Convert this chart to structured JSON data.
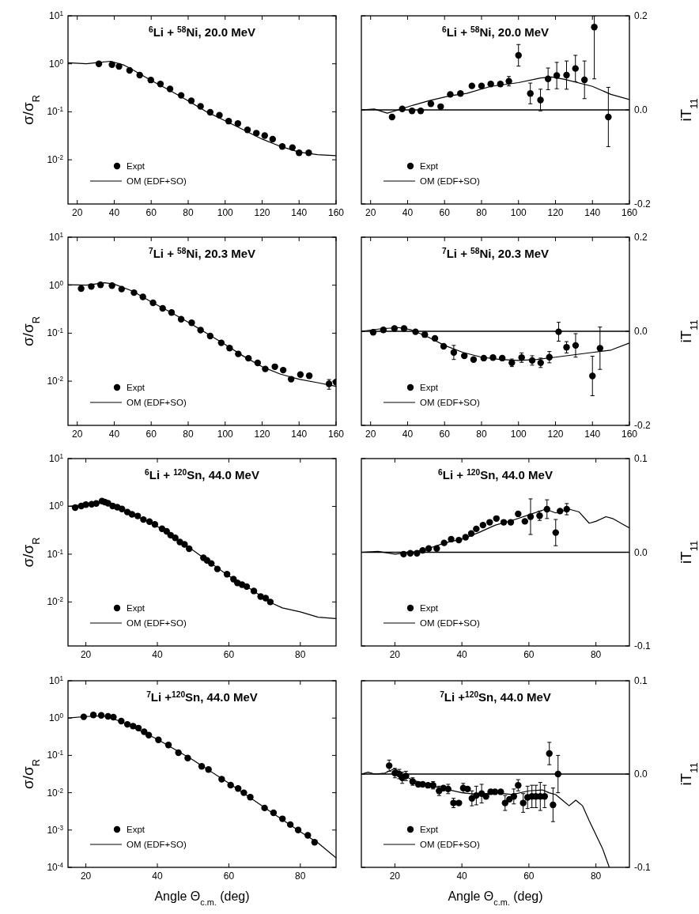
{
  "chart_data": [
    {
      "type": "scatter",
      "title": "$^{6}$Li + $^{58}$Ni, 20.0 MeV",
      "ylabel": "σ/σ$_{R}$",
      "log": "y",
      "legend": "bottom left",
      "xlim": [
        15,
        160
      ],
      "xticks": [
        20,
        40,
        60,
        80,
        100,
        120,
        140,
        160
      ],
      "ylim": [
        0.0012,
        10
      ],
      "yticks": [
        {
          "value": 10,
          "label": "10$^{1}$"
        },
        {
          "value": 1,
          "label": "10$^{0}$"
        },
        {
          "value": 0.1,
          "label": "10$^{-1}$"
        },
        {
          "value": 0.01,
          "label": "10$^{-2}$"
        }
      ],
      "series": [
        {
          "name": "Expt",
          "type": "scatter",
          "marker": "circle",
          "color": "#000000",
          "x": [
            31.7,
            38.8,
            42.6,
            48.3,
            53.8,
            59.8,
            65,
            70.2,
            76.2,
            81.7,
            86.7,
            91.9,
            96.9,
            101.9,
            106.9,
            112.1,
            116.9,
            121.4,
            125.7,
            130.9,
            136.4,
            140,
            145.2
          ],
          "values": [
            1.0,
            0.96,
            0.88,
            0.73,
            0.58,
            0.46,
            0.38,
            0.3,
            0.22,
            0.17,
            0.13,
            0.098,
            0.085,
            0.064,
            0.057,
            0.042,
            0.036,
            0.032,
            0.027,
            0.019,
            0.018,
            0.014,
            0.014
          ]
        },
        {
          "name": "OM (EDF+SO)",
          "type": "line",
          "color": "#000000",
          "x": [
            15,
            25,
            30,
            38,
            45,
            50,
            60,
            70,
            80,
            90,
            100,
            110,
            120,
            130,
            140,
            150,
            160
          ],
          "values": [
            1.05,
            1.0,
            1.05,
            1.13,
            0.95,
            0.75,
            0.45,
            0.28,
            0.17,
            0.1,
            0.065,
            0.042,
            0.027,
            0.019,
            0.0145,
            0.0128,
            0.0122
          ]
        }
      ]
    },
    {
      "type": "scatter",
      "title": "$^{6}$Li + $^{58}$Ni, 20.0 MeV",
      "ylabel": "iT$_{11}$",
      "legend": "bottom left",
      "xlim": [
        15,
        160
      ],
      "xticks": [
        20,
        40,
        60,
        80,
        100,
        120,
        140,
        160
      ],
      "ylim": [
        -0.2,
        0.2
      ],
      "yticks": [
        {
          "value": -0.2,
          "label": "-0.2"
        },
        {
          "value": 0,
          "label": "0.0"
        },
        {
          "value": 0.2,
          "label": "0.2"
        }
      ],
      "ref_lines": [
        {
          "axis": "y",
          "value": 0,
          "color": "#000000"
        }
      ],
      "series": [
        {
          "name": "Expt",
          "type": "scatter",
          "marker": "circle",
          "color": "#000000",
          "x": [
            31.6,
            37.1,
            42.4,
            47.1,
            52.6,
            57.9,
            63.1,
            68.6,
            74.8,
            80,
            85,
            90.2,
            94.8,
            100,
            106.4,
            111.9,
            116,
            120.7,
            126,
            130.8,
            135.7,
            141,
            148.6
          ],
          "values": [
            -0.015,
            0.002,
            -0.002,
            -0.002,
            0.013,
            0.007,
            0.033,
            0.035,
            0.051,
            0.051,
            0.055,
            0.055,
            0.061,
            0.116,
            0.035,
            0.021,
            0.066,
            0.073,
            0.074,
            0.088,
            0.064,
            0.176,
            -0.015
          ],
          "errors": [
            null,
            null,
            null,
            null,
            null,
            null,
            null,
            null,
            null,
            null,
            null,
            null,
            0.01,
            0.023,
            0.022,
            0.023,
            0.023,
            0.028,
            0.03,
            0.028,
            0.04,
            [
              0.066,
              0.2
            ],
            0.063
          ]
        },
        {
          "name": "OM (EDF+SO)",
          "type": "line",
          "color": "#000000",
          "x": [
            15,
            22,
            29,
            35,
            43,
            52,
            63,
            72,
            85,
            100,
            112,
            118,
            125,
            140,
            150,
            160
          ],
          "values": [
            0,
            0.002,
            -0.007,
            0,
            0.01,
            0.02,
            0.03,
            0.035,
            0.05,
            0.058,
            0.068,
            0.07,
            0.065,
            0.05,
            0.033,
            0.022
          ]
        }
      ]
    },
    {
      "type": "scatter",
      "title": "$^{7}$Li + $^{58}$Ni, 20.3 MeV",
      "ylabel": "σ/σ$_{R}$",
      "log": "y",
      "legend": "bottom left",
      "xlim": [
        15,
        160
      ],
      "xticks": [
        20,
        40,
        60,
        80,
        100,
        120,
        140,
        160
      ],
      "ylim": [
        0.0012,
        10
      ],
      "yticks": [
        {
          "value": 10,
          "label": "10$^{1}$"
        },
        {
          "value": 1,
          "label": "10$^{0}$"
        },
        {
          "value": 0.1,
          "label": "10$^{-1}$"
        },
        {
          "value": 0.01,
          "label": "10$^{-2}$"
        }
      ],
      "series": [
        {
          "name": "Expt",
          "type": "scatter",
          "marker": "circle",
          "color": "#000000",
          "x": [
            22.1,
            27.6,
            32.6,
            38.8,
            44,
            50.7,
            55.5,
            61,
            66.2,
            71,
            76.2,
            81.9,
            86.7,
            91.9,
            97.9,
            102.4,
            107.1,
            112.6,
            117.6,
            121.7,
            126.9,
            131.4,
            135.7,
            140.7,
            145.5,
            156.2,
            160
          ],
          "values": [
            0.85,
            0.94,
            1.02,
            0.98,
            0.83,
            0.7,
            0.57,
            0.43,
            0.33,
            0.27,
            0.195,
            0.165,
            0.116,
            0.087,
            0.063,
            0.049,
            0.037,
            0.03,
            0.024,
            0.018,
            0.02,
            0.017,
            0.011,
            0.0137,
            0.013,
            0.0088,
            0.0096
          ],
          "errors": [
            null,
            null,
            null,
            null,
            null,
            null,
            null,
            null,
            null,
            null,
            null,
            null,
            null,
            null,
            null,
            null,
            null,
            null,
            null,
            null,
            null,
            null,
            null,
            null,
            null,
            0.002,
            null
          ]
        },
        {
          "name": "OM (EDF+SO)",
          "type": "line",
          "color": "#000000",
          "x": [
            15,
            25,
            35,
            40,
            50,
            60,
            70,
            80,
            90,
            100,
            110,
            120,
            130,
            140,
            150,
            160
          ],
          "values": [
            1.02,
            1.0,
            1.12,
            1.05,
            0.75,
            0.45,
            0.28,
            0.17,
            0.1,
            0.058,
            0.033,
            0.02,
            0.014,
            0.011,
            0.0093,
            0.0078
          ]
        }
      ]
    },
    {
      "type": "scatter",
      "title": "$^{7}$Li + $^{58}$Ni, 20.3 MeV",
      "ylabel": "iT$_{11}$",
      "legend": "bottom left",
      "xlim": [
        15,
        160
      ],
      "xticks": [
        20,
        40,
        60,
        80,
        100,
        120,
        140,
        160
      ],
      "ylim": [
        -0.2,
        0.2
      ],
      "yticks": [
        {
          "value": -0.2,
          "label": "-0.2"
        },
        {
          "value": 0,
          "label": "0.0"
        },
        {
          "value": 0.2,
          "label": "0.2"
        }
      ],
      "ref_lines": [
        {
          "axis": "y",
          "value": 0,
          "color": "#000000"
        }
      ],
      "series": [
        {
          "name": "Expt",
          "type": "scatter",
          "marker": "circle",
          "color": "#000000",
          "x": [
            21.4,
            26.9,
            32.9,
            38.1,
            44.3,
            49.3,
            54.8,
            59.5,
            65,
            70.7,
            75.7,
            81.2,
            86.2,
            91.2,
            96.4,
            101.7,
            107.4,
            112,
            116.7,
            121.7,
            126,
            130.9,
            140,
            144.1
          ],
          "values": [
            -0.002,
            0.003,
            0.006,
            0.006,
            -0.001,
            -0.007,
            -0.015,
            -0.032,
            -0.045,
            -0.052,
            -0.06,
            -0.057,
            -0.056,
            -0.057,
            -0.067,
            -0.056,
            -0.062,
            -0.067,
            -0.055,
            -0.001,
            -0.034,
            -0.03,
            -0.095,
            -0.036
          ],
          "errors": [
            null,
            null,
            null,
            null,
            null,
            null,
            null,
            null,
            0.015,
            null,
            null,
            null,
            null,
            null,
            0.008,
            0.01,
            0.01,
            0.01,
            0.012,
            0.02,
            0.012,
            0.025,
            0.042,
            0.045
          ]
        },
        {
          "name": "OM (EDF+SO)",
          "type": "line",
          "color": "#000000",
          "x": [
            15,
            25,
            35,
            42,
            50,
            60,
            70,
            80,
            90,
            100,
            110,
            120,
            130,
            140,
            150,
            160
          ],
          "values": [
            0,
            0.005,
            0.008,
            0.003,
            -0.01,
            -0.03,
            -0.045,
            -0.055,
            -0.06,
            -0.062,
            -0.06,
            -0.055,
            -0.05,
            -0.045,
            -0.04,
            -0.025
          ]
        }
      ]
    },
    {
      "type": "scatter",
      "title": "$^{6}$Li + $^{120}$Sn, 44.0 MeV",
      "ylabel": "σ/σ$_{R}$",
      "log": "y",
      "legend": "bottom left",
      "xlim": [
        15,
        90
      ],
      "xticks": [
        20,
        40,
        60,
        80
      ],
      "ylim": [
        0.0012,
        10
      ],
      "yticks": [
        {
          "value": 10,
          "label": "10$^{1}$"
        },
        {
          "value": 1,
          "label": "10$^{0}$"
        },
        {
          "value": 0.1,
          "label": "10$^{-1}$"
        },
        {
          "value": 0.01,
          "label": "10$^{-2}$"
        }
      ],
      "series": [
        {
          "name": "Expt",
          "type": "scatter",
          "marker": "circle",
          "color": "#000000",
          "x": [
            17.0,
            18.7,
            20.0,
            21.6,
            22.9,
            24.5,
            25.3,
            26.2,
            27.5,
            28.8,
            30.1,
            31.6,
            32.9,
            34.5,
            36.1,
            37.8,
            39.3,
            41.3,
            42.6,
            43.7,
            45.0,
            46.3,
            47.6,
            48.9,
            52.9,
            53.9,
            55.1,
            56.8,
            59.5,
            61.3,
            62.4,
            63.7,
            65.0,
            67.0,
            68.9,
            70.3,
            71.6
          ],
          "values": [
            0.94,
            1.02,
            1.09,
            1.11,
            1.15,
            1.29,
            1.23,
            1.16,
            1.02,
            0.96,
            0.88,
            0.76,
            0.68,
            0.63,
            0.53,
            0.48,
            0.42,
            0.34,
            0.3,
            0.25,
            0.22,
            0.18,
            0.16,
            0.13,
            0.084,
            0.074,
            0.064,
            0.049,
            0.038,
            0.03,
            0.025,
            0.023,
            0.021,
            0.017,
            0.013,
            0.012,
            0.01
          ]
        },
        {
          "name": "OM (EDF+SO)",
          "type": "line",
          "color": "#000000",
          "x": [
            15,
            20,
            25,
            30,
            40,
            50,
            60,
            65,
            72,
            75,
            80,
            85,
            90
          ],
          "values": [
            1.0,
            1.08,
            1.2,
            0.9,
            0.38,
            0.12,
            0.035,
            0.021,
            0.0095,
            0.0075,
            0.0062,
            0.0048,
            0.0045
          ]
        }
      ]
    },
    {
      "type": "scatter",
      "title": "$^{6}$Li + $^{120}$Sn, 44.0 MeV",
      "ylabel": "iT$_{11}$",
      "legend": "bottom left",
      "xlim": [
        10,
        90
      ],
      "xticks": [
        20,
        40,
        60,
        80
      ],
      "ylim": [
        -0.1,
        0.1
      ],
      "yticks": [
        {
          "value": -0.1,
          "label": "-0.1"
        },
        {
          "value": 0,
          "label": "0.0"
        },
        {
          "value": 0.1,
          "label": "0.1"
        }
      ],
      "ref_lines": [
        {
          "axis": "y",
          "value": 0,
          "color": "#000000"
        }
      ],
      "series": [
        {
          "name": "Expt",
          "type": "scatter",
          "marker": "circle",
          "color": "#000000",
          "x": [
            22.6,
            24.6,
            26.6,
            28.3,
            30.1,
            32.5,
            34.7,
            36.8,
            39.1,
            41.1,
            42.8,
            44.3,
            46.3,
            48.3,
            50.3,
            52.5,
            54.6,
            56.8,
            58.8,
            60.5,
            63.2,
            65.4,
            68,
            69.3,
            71.3
          ],
          "values": [
            -0.002,
            -0.001,
            -0.001,
            0.002,
            0.004,
            0.004,
            0.01,
            0.014,
            0.013,
            0.016,
            0.02,
            0.025,
            0.029,
            0.032,
            0.036,
            0.032,
            0.032,
            0.041,
            0.033,
            0.038,
            0.039,
            0.046,
            0.021,
            0.044,
            0.046
          ],
          "errors": [
            null,
            null,
            null,
            null,
            null,
            null,
            null,
            null,
            null,
            null,
            null,
            null,
            null,
            null,
            null,
            null,
            null,
            null,
            null,
            0.019,
            0.005,
            0.01,
            0.014,
            null,
            0.006
          ]
        },
        {
          "name": "OM (EDF+SO)",
          "type": "line",
          "color": "#000000",
          "x": [
            10,
            15,
            20,
            25,
            30,
            35,
            40,
            45,
            50,
            55,
            60,
            65,
            68,
            72,
            75,
            78,
            80,
            83,
            85,
            88,
            90
          ],
          "values": [
            0,
            0.001,
            -0.002,
            0,
            0.004,
            0.01,
            0.014,
            0.021,
            0.029,
            0.034,
            0.04,
            0.046,
            0.042,
            0.046,
            0.043,
            0.031,
            0.033,
            0.038,
            0.036,
            0.03,
            0.026
          ]
        }
      ]
    },
    {
      "type": "scatter",
      "title": "$^{7}$Li +$^{120}$Sn, 44.0 MeV",
      "ylabel": "σ/σ$_{R}$",
      "xlabel": "Angle Θ$_{c.m.}$ (deg)",
      "log": "y",
      "legend": "bottom left",
      "xlim": [
        15,
        90
      ],
      "xticks": [
        20,
        40,
        60,
        80
      ],
      "ylim": [
        0.0001,
        10
      ],
      "yticks": [
        {
          "value": 10,
          "label": "10$^{1}$"
        },
        {
          "value": 1,
          "label": "10$^{0}$"
        },
        {
          "value": 0.1,
          "label": "10$^{-1}$"
        },
        {
          "value": 0.01,
          "label": "10$^{-2}$"
        },
        {
          "value": 0.001,
          "label": "10$^{-3}$"
        },
        {
          "value": 0.0001,
          "label": "10$^{-4}$"
        }
      ],
      "series": [
        {
          "name": "Expt",
          "type": "scatter",
          "marker": "circle",
          "color": "#000000",
          "x": [
            19.4,
            22.1,
            24.3,
            26.2,
            27.7,
            29.9,
            31.6,
            33.2,
            34.7,
            36.3,
            37.6,
            40.3,
            43.1,
            45.9,
            48.5,
            52.4,
            54.3,
            58,
            60.5,
            62.6,
            64.2,
            66,
            70,
            72.5,
            75,
            77.2,
            79.4,
            82.1,
            84
          ],
          "values": [
            1.08,
            1.21,
            1.18,
            1.11,
            1.06,
            0.83,
            0.68,
            0.61,
            0.54,
            0.43,
            0.35,
            0.26,
            0.19,
            0.118,
            0.085,
            0.051,
            0.042,
            0.023,
            0.016,
            0.013,
            0.01,
            0.0076,
            0.0039,
            0.0029,
            0.002,
            0.0014,
            0.001,
            0.00072,
            0.00047
          ]
        },
        {
          "name": "OM (EDF+SO)",
          "type": "line",
          "color": "#000000",
          "x": [
            15,
            20,
            25,
            30,
            40,
            50,
            60,
            70,
            80,
            85,
            90
          ],
          "values": [
            1.0,
            1.1,
            1.15,
            0.8,
            0.27,
            0.075,
            0.018,
            0.004,
            0.0009,
            0.00045,
            0.00018
          ]
        }
      ]
    },
    {
      "type": "scatter",
      "title": "$^{7}$Li +$^{120}$Sn, 44.0 MeV",
      "ylabel": "iT$_{11}$",
      "xlabel": "Angle Θ$_{c.m.}$ (deg)",
      "legend": "bottom left",
      "xlim": [
        10,
        90
      ],
      "xticks": [
        20,
        40,
        60,
        80
      ],
      "ylim": [
        -0.1,
        0.1
      ],
      "yticks": [
        {
          "value": -0.1,
          "label": "-0.1"
        },
        {
          "value": 0,
          "label": "0.0"
        },
        {
          "value": 0.1,
          "label": "0.1"
        }
      ],
      "ref_lines": [
        {
          "axis": "y",
          "value": 0,
          "color": "#000000"
        }
      ],
      "series": [
        {
          "name": "Expt",
          "type": "scatter",
          "marker": "circle",
          "color": "#000000",
          "x": [
            18.3,
            20.0,
            21.3,
            22.2,
            23.3,
            25.3,
            27.0,
            28.3,
            29.9,
            31.4,
            33.2,
            34.5,
            35.9,
            37.5,
            39.1,
            40.4,
            41.7,
            43.0,
            44.3,
            45.9,
            47.2,
            48.6,
            49.9,
            51.6,
            52.9,
            54.2,
            55.5,
            56.8,
            58.3,
            59.6,
            60.9,
            62.1,
            63.4,
            64.7,
            66.1,
            67.2,
            68.7
          ],
          "values": [
            0.009,
            0.001,
            0.0,
            -0.004,
            -0.002,
            -0.008,
            -0.011,
            -0.011,
            -0.012,
            -0.012,
            -0.018,
            -0.015,
            -0.016,
            -0.031,
            -0.031,
            -0.015,
            -0.016,
            -0.026,
            -0.023,
            -0.021,
            -0.024,
            -0.019,
            -0.019,
            -0.019,
            -0.031,
            -0.027,
            -0.024,
            -0.012,
            -0.031,
            -0.025,
            -0.024,
            -0.024,
            -0.024,
            -0.024,
            0.022,
            -0.033,
            0.0
          ],
          "errors": [
            0.006,
            0.005,
            0.005,
            0.006,
            0.005,
            0.004,
            null,
            null,
            null,
            0.004,
            0.005,
            null,
            0.005,
            0.005,
            null,
            0.005,
            null,
            0.008,
            0.01,
            0.01,
            null,
            null,
            null,
            null,
            0.008,
            null,
            0.008,
            0.006,
            0.01,
            0.012,
            0.012,
            0.012,
            0.015,
            0.012,
            0.012,
            0.018,
            0.02
          ]
        },
        {
          "name": "OM (EDF+SO)",
          "type": "line",
          "color": "#000000",
          "x": [
            10,
            12,
            14,
            17,
            20,
            22,
            25,
            30,
            35,
            40,
            45,
            50,
            55,
            60,
            64,
            66,
            68,
            70,
            72,
            74,
            76,
            78,
            80,
            82,
            84
          ],
          "values": [
            0,
            0.002,
            0,
            0.001,
            0.006,
            0,
            -0.006,
            -0.012,
            -0.016,
            -0.02,
            -0.022,
            -0.02,
            -0.022,
            -0.018,
            -0.017,
            -0.02,
            -0.022,
            -0.028,
            -0.034,
            -0.028,
            -0.034,
            -0.05,
            -0.065,
            -0.08,
            -0.1
          ]
        }
      ]
    }
  ]
}
